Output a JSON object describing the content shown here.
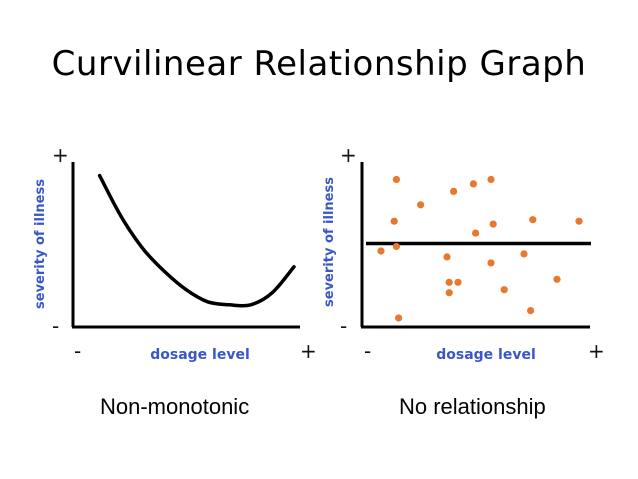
{
  "title": "Curvilinear Relationship Graph",
  "panels": [
    {
      "caption": "Non-monotonic",
      "ylabel": "severity of illness",
      "xlabel": "dosage level",
      "y_plus": "+",
      "y_minus": "-",
      "x_minus": "-",
      "x_plus": "+"
    },
    {
      "caption": "No relationship",
      "ylabel": "severity of illness",
      "xlabel": "dosage level",
      "y_plus": "+",
      "y_minus": "-",
      "x_minus": "-",
      "x_plus": "+"
    }
  ],
  "colors": {
    "axis_label": "#3a56c8",
    "dots": "#e8782e",
    "curve": "#000000"
  },
  "chart_data": [
    {
      "type": "line",
      "xlim": [
        0,
        1
      ],
      "ylim": [
        0,
        1
      ],
      "series": [
        {
          "x": [
            0.1,
            0.2,
            0.3,
            0.4,
            0.5,
            0.6,
            0.7,
            0.8,
            0.9,
            1.0
          ],
          "y": [
            0.95,
            0.68,
            0.47,
            0.32,
            0.2,
            0.12,
            0.1,
            0.1,
            0.18,
            0.35
          ]
        }
      ]
    },
    {
      "type": "scatter",
      "xlim": [
        0,
        1
      ],
      "ylim": [
        0,
        1
      ],
      "series": [
        {
          "x": [
            0.12,
            0.23,
            0.38,
            0.47,
            0.55,
            0.11,
            0.48,
            0.56,
            0.74,
            0.95,
            0.05,
            0.12,
            0.35,
            0.7,
            0.55,
            0.85,
            0.36,
            0.4,
            0.36,
            0.61,
            0.13,
            0.73
          ],
          "y": [
            0.95,
            0.78,
            0.87,
            0.92,
            0.95,
            0.67,
            0.59,
            0.65,
            0.68,
            0.67,
            0.47,
            0.5,
            0.43,
            0.45,
            0.39,
            0.28,
            0.26,
            0.26,
            0.19,
            0.21,
            0.02,
            0.07
          ]
        }
      ],
      "reference_line": {
        "y": 0.52
      }
    }
  ]
}
